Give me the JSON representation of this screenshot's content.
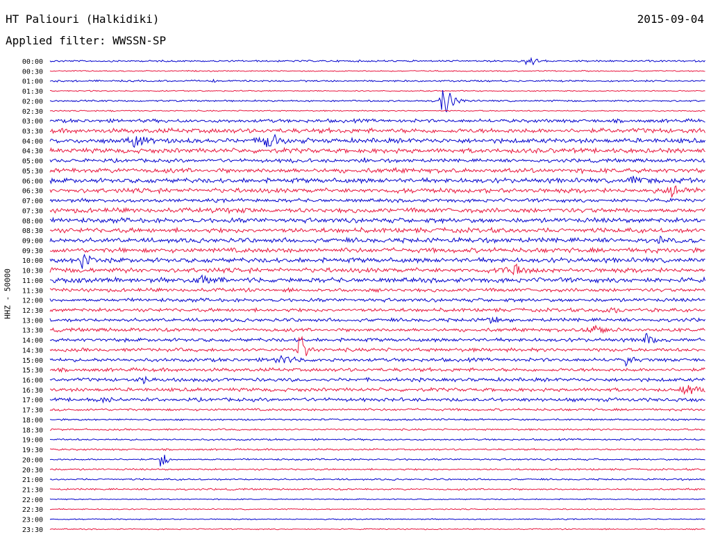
{
  "header": {
    "station": "HT Paliouri (Halkidiki)",
    "date": "2015-09-04",
    "filter": "Applied filter: WWSSN-SP"
  },
  "chart_data": {
    "type": "line",
    "title": "HT Paliouri (Halkidiki)",
    "ylabel": "HHZ - 50000",
    "trace_colors": [
      "#0000cc",
      "#e8143c"
    ],
    "rows": [
      "00:00",
      "00:30",
      "01:00",
      "01:30",
      "02:00",
      "02:30",
      "03:00",
      "03:30",
      "04:00",
      "04:30",
      "05:00",
      "05:30",
      "06:00",
      "06:30",
      "07:00",
      "07:30",
      "08:00",
      "08:30",
      "09:00",
      "09:30",
      "10:00",
      "10:30",
      "11:00",
      "11:30",
      "12:00",
      "12:30",
      "13:00",
      "13:30",
      "14:00",
      "14:30",
      "15:00",
      "15:30",
      "16:00",
      "16:30",
      "17:00",
      "17:30",
      "18:00",
      "18:30",
      "19:00",
      "19:30",
      "20:00",
      "20:30",
      "21:00",
      "21:30",
      "22:00",
      "22:30",
      "23:00",
      "23:30"
    ],
    "noise": [
      1.5,
      1,
      1.5,
      1,
      1.5,
      1,
      3,
      4,
      4,
      4,
      3,
      4,
      4,
      4,
      3,
      4,
      4,
      4,
      4,
      4,
      4,
      4,
      4,
      3,
      3,
      3,
      3,
      3,
      3,
      3,
      3,
      3,
      3,
      3,
      3,
      2,
      1.5,
      1.5,
      1.5,
      1.5,
      1.5,
      1.5,
      1.5,
      1.5,
      1,
      1,
      1,
      1
    ],
    "events": [
      {
        "row": 0,
        "t": 0.73,
        "amp": 10,
        "w": 0.01
      },
      {
        "row": 2,
        "t": 0.25,
        "amp": 4,
        "w": 0.004
      },
      {
        "row": 4,
        "t": 0.6,
        "amp": 30,
        "w": 0.008
      },
      {
        "row": 5,
        "t": 0.09,
        "amp": 5,
        "w": 0.004
      },
      {
        "row": 8,
        "t": 0.13,
        "amp": 12,
        "w": 0.02
      },
      {
        "row": 8,
        "t": 0.33,
        "amp": 16,
        "w": 0.015
      },
      {
        "row": 10,
        "t": 0.37,
        "amp": 8,
        "w": 0.003
      },
      {
        "row": 10,
        "t": 0.48,
        "amp": 8,
        "w": 0.003
      },
      {
        "row": 12,
        "t": 0.89,
        "amp": 10,
        "w": 0.015
      },
      {
        "row": 13,
        "t": 0.95,
        "amp": 12,
        "w": 0.02
      },
      {
        "row": 15,
        "t": 0.27,
        "amp": 6,
        "w": 0.02
      },
      {
        "row": 18,
        "t": 0.93,
        "amp": 8,
        "w": 0.01
      },
      {
        "row": 20,
        "t": 0.05,
        "amp": 18,
        "w": 0.008
      },
      {
        "row": 21,
        "t": 0.7,
        "amp": 15,
        "w": 0.015
      },
      {
        "row": 22,
        "t": 0.23,
        "amp": 12,
        "w": 0.02
      },
      {
        "row": 25,
        "t": 0.85,
        "amp": 8,
        "w": 0.015
      },
      {
        "row": 26,
        "t": 0.67,
        "amp": 10,
        "w": 0.01
      },
      {
        "row": 27,
        "t": 0.83,
        "amp": 10,
        "w": 0.02
      },
      {
        "row": 28,
        "t": 0.91,
        "amp": 12,
        "w": 0.008
      },
      {
        "row": 29,
        "t": 0.38,
        "amp": 35,
        "w": 0.006
      },
      {
        "row": 30,
        "t": 0.35,
        "amp": 12,
        "w": 0.015
      },
      {
        "row": 30,
        "t": 0.88,
        "amp": 14,
        "w": 0.006
      },
      {
        "row": 32,
        "t": 0.14,
        "amp": 8,
        "w": 0.015
      },
      {
        "row": 33,
        "t": 0.97,
        "amp": 10,
        "w": 0.02
      },
      {
        "row": 34,
        "t": 0.08,
        "amp": 6,
        "w": 0.02
      },
      {
        "row": 40,
        "t": 0.17,
        "amp": 50,
        "w": 0.003
      }
    ]
  }
}
